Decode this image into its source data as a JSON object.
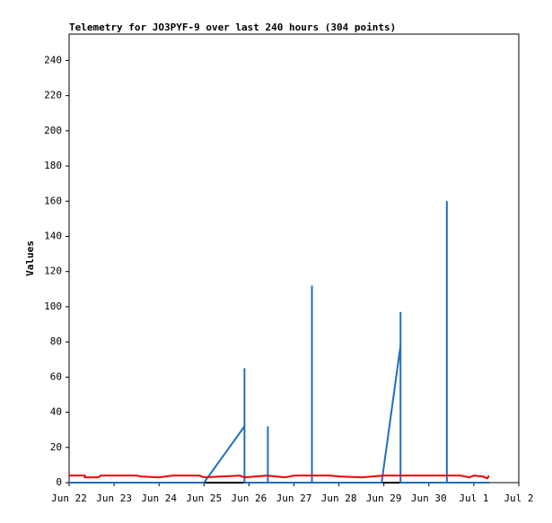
{
  "chart_data": {
    "type": "line",
    "title": "Telemetry for JO3PYF-9 over last 240 hours (304 points)",
    "ylabel": "Values",
    "xlim": [
      0,
      10
    ],
    "xticks": [
      {
        "value": 0,
        "label": "Jun 22"
      },
      {
        "value": 1,
        "label": "Jun 23"
      },
      {
        "value": 2,
        "label": "Jun 24"
      },
      {
        "value": 3,
        "label": "Jun 25"
      },
      {
        "value": 4,
        "label": "Jun 26"
      },
      {
        "value": 5,
        "label": "Jun 27"
      },
      {
        "value": 6,
        "label": "Jun 28"
      },
      {
        "value": 7,
        "label": "Jun 29"
      },
      {
        "value": 8,
        "label": "Jun 30"
      },
      {
        "value": 9,
        "label": "Jul 1"
      },
      {
        "value": 10,
        "label": "Jul 2"
      }
    ],
    "ylim": [
      0,
      255
    ],
    "yticks": [
      0,
      20,
      40,
      60,
      80,
      100,
      120,
      140,
      160,
      180,
      200,
      220,
      240
    ],
    "series": [
      {
        "color": "#000000",
        "x": [
          0,
          9.34
        ],
        "values": [
          0,
          0
        ]
      },
      {
        "color": "#1f6fbf",
        "x": [
          0,
          3.0,
          3.9,
          3.9,
          3.9,
          4.42,
          4.42,
          4.42,
          5.4,
          5.4,
          5.4,
          6.95,
          7.37,
          7.37,
          7.37,
          8.4,
          8.4,
          8.4,
          9.34
        ],
        "values": [
          0,
          0,
          32,
          65,
          0,
          0,
          32,
          0,
          0,
          112,
          0,
          0,
          78,
          97,
          0,
          0,
          160,
          0,
          0
        ]
      },
      {
        "color": "#ee0000",
        "x": [
          0,
          0.35,
          0.35,
          0.65,
          0.7,
          1.5,
          1.6,
          2.0,
          2.3,
          2.9,
          3.0,
          3.8,
          3.9,
          4.4,
          4.8,
          5.0,
          5.8,
          6.0,
          6.5,
          7.0,
          8.7,
          8.9,
          9.0,
          9.2,
          9.3,
          9.34
        ],
        "values": [
          4,
          4,
          3,
          3,
          4,
          4,
          3.5,
          3,
          4,
          4,
          3,
          4,
          3,
          4,
          3,
          4,
          4,
          3.5,
          3,
          4,
          4,
          3,
          4,
          3.5,
          2.5,
          4
        ]
      }
    ]
  }
}
